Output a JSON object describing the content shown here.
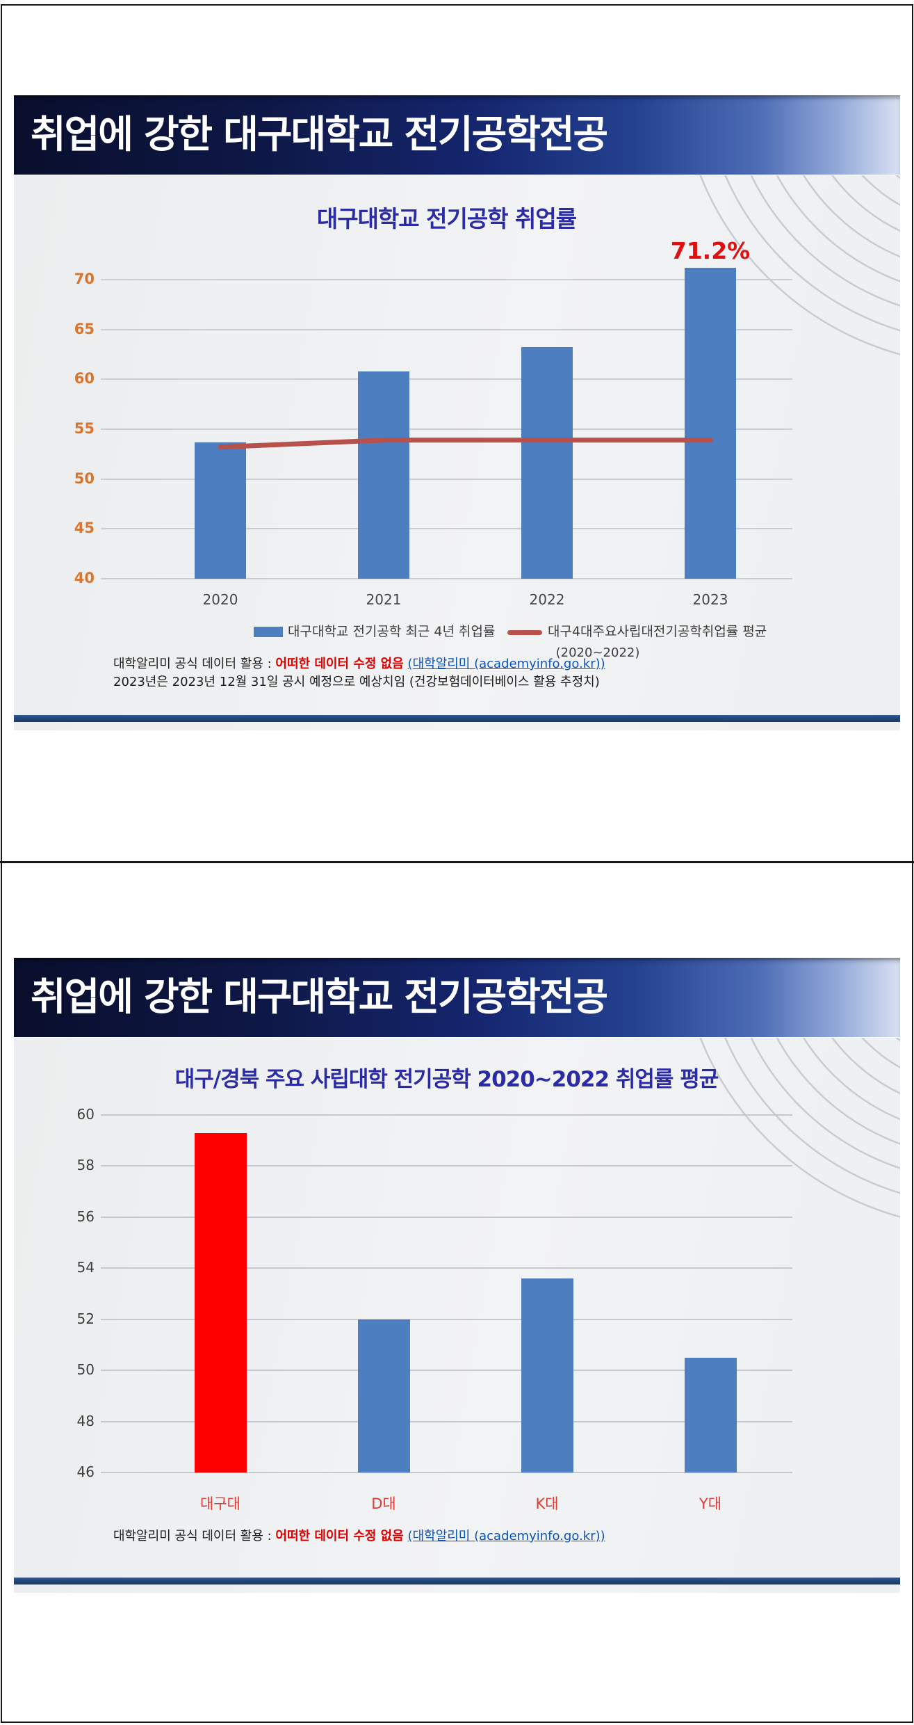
{
  "slides": [
    {
      "header_title": "취업에 강한 대구대학교 전기공학전공",
      "callout": "71.2%",
      "legend": {
        "bar_label": "대구대학교 전기공학 최근 4년 취업률",
        "line_label": "대구4대주요사립대전기공학취업률 평균",
        "line_sub": "(2020~2022)"
      },
      "footnote": {
        "prefix": "대학알리미 공식 데이터 활용 : ",
        "emphasis": "어떠한 데이터 수정 없음",
        "link": "(대학알리미 (academyinfo.go.kr))",
        "line2": "2023년은 2023년 12월 31일 공시 예정으로 예상치임 (건강보험데이터베이스 활용 추정치)"
      }
    },
    {
      "header_title": "취업에 강한 대구대학교 전기공학전공",
      "footnote": {
        "prefix": "대학알리미 공식 데이터 활용 : ",
        "emphasis": "어떠한 데이터 수정 없음",
        "link": "(대학알리미 (academyinfo.go.kr))"
      }
    }
  ],
  "chart_data": [
    {
      "type": "bar",
      "title": "대구대학교 전기공학 취업률",
      "categories": [
        "2020",
        "2021",
        "2022",
        "2023"
      ],
      "series": [
        {
          "name": "대구대학교 전기공학 최근 4년 취업률",
          "type": "bar",
          "color": "#4d7ebf",
          "values": [
            53.7,
            60.8,
            63.2,
            71.2
          ]
        },
        {
          "name": "대구4대주요사립대전기공학취업률 평균 (2020~2022)",
          "type": "line",
          "color": "#b8504b",
          "values": [
            53.2,
            53.9,
            53.9,
            53.9
          ]
        }
      ],
      "ylim": [
        40,
        70
      ],
      "ytick_step": 5,
      "grid": "on",
      "legend_position": "bottom",
      "annotation": {
        "text": "71.2%",
        "category": "2023"
      }
    },
    {
      "type": "bar",
      "title": "대구/경북 주요 사립대학  전기공학 2020~2022 취업률 평균",
      "categories": [
        "대구대",
        "D대",
        "K대",
        "Y대"
      ],
      "values": [
        59.3,
        52.0,
        53.6,
        50.5
      ],
      "bar_colors": [
        "#fe0000",
        "#4d7ebf",
        "#4d7ebf",
        "#4d7ebf"
      ],
      "ylim": [
        46,
        60
      ],
      "ytick_step": 2,
      "grid": "on",
      "legend_position": "none"
    }
  ],
  "colors": {
    "bar_blue": "#4d7ebf",
    "bar_red": "#fe0000",
    "trend_line_red": "#b8504b",
    "ytick_orange": "#d9752e",
    "chart_title_navy": "#2b2ba6",
    "callout_red": "#e01010",
    "footnote_emphasis_red": "#e00000",
    "link_blue": "#0a53be",
    "xlabel_red": "#e03a34",
    "separator_navy": "#224878"
  }
}
